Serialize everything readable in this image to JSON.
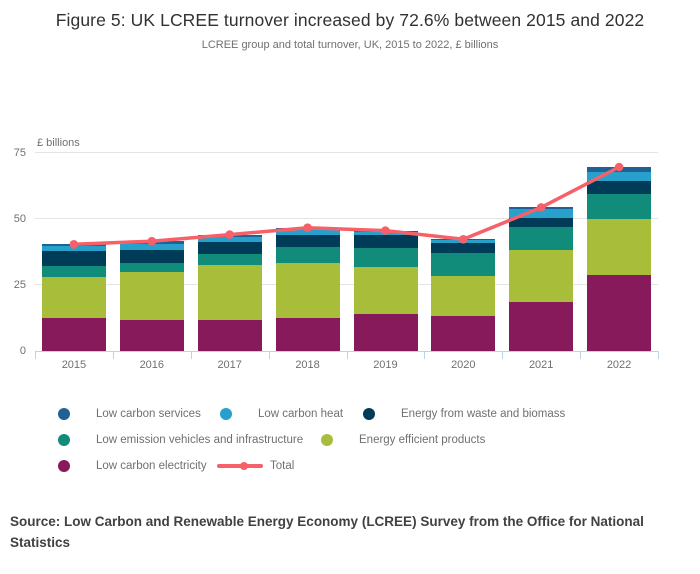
{
  "figure": {
    "title": "Figure 5: UK LCREE turnover increased by 72.6% between 2015 and 2022",
    "subtitle": "LCREE group and total turnover, UK, 2015 to 2022, £ billions",
    "source": "Source: Low Carbon and Renewable Energy Economy (LCREE) Survey from the Office for National Statistics"
  },
  "chart_data": {
    "type": "bar",
    "subtype": "stacked-bar-with-total-line",
    "title": "Figure 5: UK LCREE turnover increased by 72.6% between 2015 and 2022",
    "xlabel": "",
    "ylabel": "£ billions",
    "unit_label": "£ billions",
    "categories": [
      "2015",
      "2016",
      "2017",
      "2018",
      "2019",
      "2020",
      "2021",
      "2022"
    ],
    "y_ticks": [
      0,
      25,
      50,
      75
    ],
    "ylim": [
      0,
      75
    ],
    "grid": true,
    "legend_position": "bottom",
    "series": [
      {
        "name": "Low carbon electricity",
        "color": "#871A5B",
        "values": [
          12.4,
          11.9,
          11.7,
          12.4,
          13.9,
          13.3,
          18.7,
          28.7
        ]
      },
      {
        "name": "Energy efficient products",
        "color": "#A8BD3A",
        "values": [
          15.7,
          17.9,
          20.7,
          21.0,
          17.8,
          15.1,
          19.6,
          21.3
        ]
      },
      {
        "name": "Low emission vehicles and infrastructure",
        "color": "#118C7B",
        "values": [
          4.1,
          3.4,
          4.2,
          6.1,
          7.4,
          8.6,
          8.8,
          9.4
        ]
      },
      {
        "name": "Energy from waste and biomass",
        "color": "#003C57",
        "values": [
          5.6,
          5.1,
          4.6,
          4.4,
          4.8,
          3.8,
          3.2,
          4.9
        ]
      },
      {
        "name": "Low carbon heat",
        "color": "#27A0CC",
        "values": [
          1.8,
          2.3,
          2.0,
          2.2,
          1.3,
          1.2,
          3.5,
          3.5
        ]
      },
      {
        "name": "Low carbon services",
        "color": "#206095",
        "values": [
          0.9,
          1.0,
          0.9,
          0.6,
          0.4,
          0.4,
          0.6,
          1.9
        ]
      }
    ],
    "total_line": {
      "name": "Total",
      "color": "#F66068",
      "values": [
        40.4,
        41.6,
        44.1,
        46.7,
        45.6,
        42.3,
        54.4,
        69.7
      ]
    },
    "legend_order": [
      "Low carbon services",
      "Low carbon heat",
      "Energy from waste and biomass",
      "Low emission vehicles and infrastructure",
      "Energy efficient products",
      "Low carbon electricity",
      "Total"
    ]
  },
  "colors": {
    "axis": "#bed2e4",
    "grid": "#e4e4e4",
    "label_text": "#707071",
    "title_text": "#323132",
    "source_text": "#414042"
  }
}
